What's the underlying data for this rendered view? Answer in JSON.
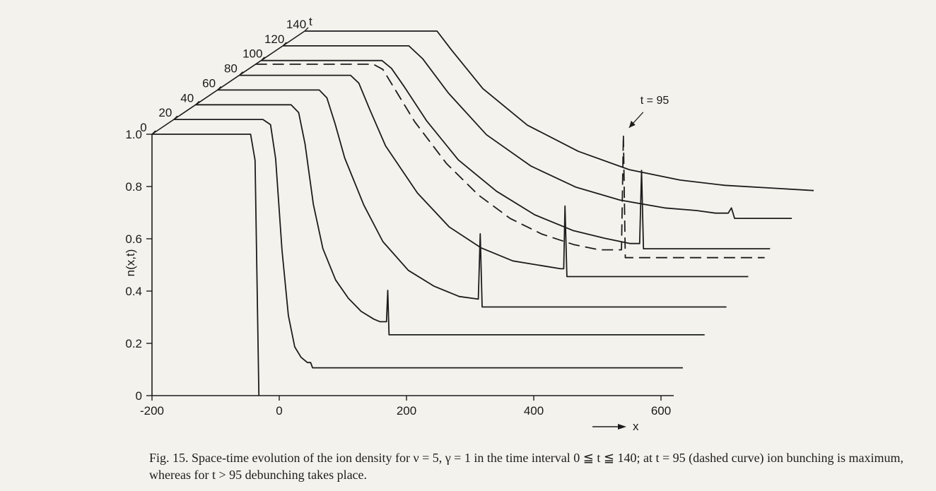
{
  "chart_data": {
    "type": "line",
    "title": "",
    "xlabel": "x",
    "ylabel": "n(x,t)",
    "tlabel": "t",
    "x_ticks": [
      "-200",
      "0",
      "200",
      "400",
      "600"
    ],
    "y_ticks": [
      "0",
      "0.2",
      "0.4",
      "0.6",
      "0.8",
      "1.0"
    ],
    "t_ticks": [
      "0",
      "20",
      "40",
      "60",
      "80",
      "100",
      "120",
      "140"
    ],
    "xlim": [
      -200,
      620
    ],
    "ylim": [
      0,
      1.0
    ],
    "tlim": [
      0,
      140
    ],
    "annotation": "t = 95",
    "highlighted_curve": {
      "t": 95,
      "style": "dashed"
    },
    "series": [
      {
        "t": 0,
        "points": [
          [
            -200,
            1.0
          ],
          [
            -45,
            1.0
          ],
          [
            -38,
            0.9
          ],
          [
            -34,
            0.3
          ],
          [
            -32,
            0.0
          ]
        ]
      },
      {
        "t": 20,
        "points": [
          [
            -200,
            1.0
          ],
          [
            -60,
            1.0
          ],
          [
            -48,
            0.98
          ],
          [
            -40,
            0.85
          ],
          [
            -30,
            0.5
          ],
          [
            -20,
            0.25
          ],
          [
            -10,
            0.13
          ],
          [
            0,
            0.09
          ],
          [
            10,
            0.07
          ],
          [
            15,
            0.07
          ],
          [
            18,
            0.05
          ],
          [
            20,
            0.05
          ],
          [
            600,
            0.05
          ]
        ]
      },
      {
        "t": 40,
        "points": [
          [
            -200,
            1.0
          ],
          [
            -50,
            1.0
          ],
          [
            -38,
            0.97
          ],
          [
            -28,
            0.85
          ],
          [
            -15,
            0.62
          ],
          [
            0,
            0.45
          ],
          [
            20,
            0.33
          ],
          [
            40,
            0.26
          ],
          [
            60,
            0.21
          ],
          [
            80,
            0.18
          ],
          [
            90,
            0.17
          ],
          [
            100,
            0.17
          ],
          [
            102,
            0.29
          ],
          [
            104,
            0.12
          ],
          [
            600,
            0.12
          ]
        ]
      },
      {
        "t": 60,
        "points": [
          [
            -200,
            1.0
          ],
          [
            -40,
            1.0
          ],
          [
            -28,
            0.97
          ],
          [
            -15,
            0.87
          ],
          [
            0,
            0.74
          ],
          [
            30,
            0.56
          ],
          [
            60,
            0.42
          ],
          [
            100,
            0.31
          ],
          [
            140,
            0.25
          ],
          [
            180,
            0.21
          ],
          [
            210,
            0.2
          ],
          [
            213,
            0.45
          ],
          [
            216,
            0.17
          ],
          [
            600,
            0.17
          ]
        ]
      },
      {
        "t": 80,
        "points": [
          [
            -200,
            1.0
          ],
          [
            -25,
            1.0
          ],
          [
            -12,
            0.97
          ],
          [
            5,
            0.87
          ],
          [
            30,
            0.73
          ],
          [
            80,
            0.55
          ],
          [
            130,
            0.42
          ],
          [
            180,
            0.34
          ],
          [
            230,
            0.29
          ],
          [
            280,
            0.27
          ],
          [
            305,
            0.26
          ],
          [
            310,
            0.26
          ],
          [
            312,
            0.5
          ],
          [
            315,
            0.23
          ],
          [
            600,
            0.23
          ]
        ]
      },
      {
        "t": 95,
        "dashed": true,
        "points": [
          [
            -200,
            1.0
          ],
          [
            -15,
            1.0
          ],
          [
            0,
            0.98
          ],
          [
            20,
            0.9
          ],
          [
            50,
            0.78
          ],
          [
            100,
            0.62
          ],
          [
            150,
            0.5
          ],
          [
            200,
            0.41
          ],
          [
            250,
            0.35
          ],
          [
            300,
            0.31
          ],
          [
            340,
            0.29
          ],
          [
            375,
            0.29
          ],
          [
            378,
            0.73
          ],
          [
            381,
            0.26
          ],
          [
            600,
            0.26
          ]
        ]
      },
      {
        "t": 100,
        "points": [
          [
            -200,
            1.0
          ],
          [
            -10,
            1.0
          ],
          [
            5,
            0.97
          ],
          [
            25,
            0.9
          ],
          [
            60,
            0.77
          ],
          [
            110,
            0.62
          ],
          [
            170,
            0.5
          ],
          [
            230,
            0.41
          ],
          [
            290,
            0.35
          ],
          [
            340,
            0.32
          ],
          [
            380,
            0.3
          ],
          [
            395,
            0.3
          ],
          [
            398,
            0.58
          ],
          [
            401,
            0.28
          ],
          [
            600,
            0.28
          ]
        ]
      },
      {
        "t": 120,
        "points": [
          [
            -200,
            1.0
          ],
          [
            -2,
            1.0
          ],
          [
            20,
            0.95
          ],
          [
            60,
            0.82
          ],
          [
            120,
            0.66
          ],
          [
            190,
            0.54
          ],
          [
            260,
            0.46
          ],
          [
            330,
            0.41
          ],
          [
            400,
            0.38
          ],
          [
            450,
            0.37
          ],
          [
            480,
            0.36
          ],
          [
            500,
            0.36
          ],
          [
            505,
            0.38
          ],
          [
            510,
            0.34
          ],
          [
            600,
            0.34
          ]
        ]
      },
      {
        "t": 140,
        "points": [
          [
            -200,
            1.0
          ],
          [
            8,
            1.0
          ],
          [
            30,
            0.93
          ],
          [
            80,
            0.78
          ],
          [
            150,
            0.64
          ],
          [
            230,
            0.54
          ],
          [
            310,
            0.47
          ],
          [
            390,
            0.43
          ],
          [
            460,
            0.41
          ],
          [
            530,
            0.4
          ],
          [
            600,
            0.39
          ]
        ]
      }
    ]
  },
  "caption": {
    "text": "Fig. 15. Space-time evolution of the ion density for ν = 5, γ = 1 in the time interval 0 ≦ t ≦ 140; at t = 95 (dashed curve) ion bunching is maximum, whereas for t > 95 debunching takes place."
  }
}
